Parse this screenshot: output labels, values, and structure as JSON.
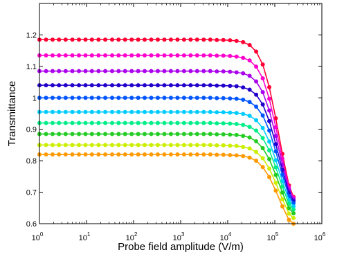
{
  "chart_data": {
    "type": "line",
    "title": "",
    "xlabel": "Probe field amplitude (V/m)",
    "ylabel": "Transmittance",
    "x_scale": "log",
    "xlim": [
      1,
      1000000
    ],
    "ylim": [
      0.6,
      1.3
    ],
    "grid": false,
    "x_ticks": [
      {
        "value": 1,
        "base": "10",
        "exp": "0"
      },
      {
        "value": 10,
        "base": "10",
        "exp": "1"
      },
      {
        "value": 100,
        "base": "10",
        "exp": "2"
      },
      {
        "value": 1000,
        "base": "10",
        "exp": "3"
      },
      {
        "value": 10000,
        "base": "10",
        "exp": "4"
      },
      {
        "value": 100000,
        "base": "10",
        "exp": "5"
      },
      {
        "value": 1000000,
        "base": "10",
        "exp": "6"
      }
    ],
    "y_ticks": [
      {
        "value": 0.6,
        "label": "0.6"
      },
      {
        "value": 0.7,
        "label": "0.7"
      },
      {
        "value": 0.8,
        "label": "0.8"
      },
      {
        "value": 0.9,
        "label": "0.9"
      },
      {
        "value": 1.0,
        "label": "1"
      },
      {
        "value": 1.1,
        "label": "1.1"
      },
      {
        "value": 1.2,
        "label": "1.2"
      }
    ],
    "x": [
      1,
      1.38,
      1.9,
      2.6,
      3.6,
      5,
      6.9,
      9.5,
      13,
      18,
      25,
      35,
      48,
      66,
      91,
      125,
      172,
      237,
      327,
      451,
      621,
      856,
      1180,
      1630,
      2240,
      3090,
      4260,
      5870,
      8090,
      11200,
      15400,
      21200,
      29200,
      40200,
      55500,
      76400,
      105000,
      145000,
      200000,
      250000
    ],
    "series": [
      {
        "color": "#ff0033",
        "low": 0.185,
        "values": [
          1.185,
          1.185,
          1.185,
          1.185,
          1.185,
          1.185,
          1.185,
          1.185,
          1.185,
          1.185,
          1.185,
          1.185,
          1.185,
          1.185,
          1.185,
          1.185,
          1.185,
          1.185,
          1.185,
          1.185,
          1.185,
          1.185,
          1.185,
          1.185,
          1.185,
          1.185,
          1.185,
          1.184,
          1.184,
          1.183,
          1.181,
          1.177,
          1.168,
          1.147,
          1.106,
          1.034,
          0.935,
          0.822,
          0.722,
          0.685
        ]
      },
      {
        "color": "#ff00cc",
        "low": 0.19,
        "values": [
          1.135,
          1.135,
          1.135,
          1.135,
          1.135,
          1.135,
          1.135,
          1.135,
          1.135,
          1.135,
          1.135,
          1.135,
          1.135,
          1.135,
          1.135,
          1.135,
          1.135,
          1.135,
          1.135,
          1.135,
          1.135,
          1.135,
          1.135,
          1.135,
          1.135,
          1.135,
          1.135,
          1.134,
          1.134,
          1.133,
          1.131,
          1.127,
          1.119,
          1.099,
          1.062,
          0.997,
          0.907,
          0.806,
          0.715,
          0.682
        ]
      },
      {
        "color": "#aa00ee",
        "low": 0.195,
        "values": [
          1.085,
          1.085,
          1.085,
          1.085,
          1.085,
          1.085,
          1.085,
          1.085,
          1.085,
          1.085,
          1.085,
          1.085,
          1.085,
          1.085,
          1.085,
          1.085,
          1.085,
          1.085,
          1.085,
          1.085,
          1.085,
          1.085,
          1.085,
          1.085,
          1.085,
          1.085,
          1.085,
          1.084,
          1.084,
          1.083,
          1.081,
          1.078,
          1.07,
          1.052,
          1.018,
          0.96,
          0.879,
          0.788,
          0.707,
          0.678
        ]
      },
      {
        "color": "#2200cc",
        "low": 0.2,
        "values": [
          1.04,
          1.04,
          1.04,
          1.04,
          1.04,
          1.04,
          1.04,
          1.04,
          1.04,
          1.04,
          1.04,
          1.04,
          1.04,
          1.04,
          1.04,
          1.04,
          1.04,
          1.04,
          1.04,
          1.04,
          1.04,
          1.04,
          1.04,
          1.04,
          1.04,
          1.04,
          1.04,
          1.039,
          1.039,
          1.038,
          1.037,
          1.033,
          1.026,
          1.01,
          0.979,
          0.926,
          0.853,
          0.771,
          0.697,
          0.672
        ]
      },
      {
        "color": "#0055ff",
        "low": 0.205,
        "values": [
          1.0,
          1.0,
          1.0,
          1.0,
          1.0,
          1.0,
          1.0,
          1.0,
          1.0,
          1.0,
          1.0,
          1.0,
          1.0,
          1.0,
          1.0,
          1.0,
          1.0,
          1.0,
          1.0,
          1.0,
          1.0,
          1.0,
          1.0,
          1.0,
          1.0,
          1.0,
          1.0,
          0.999,
          0.999,
          0.998,
          0.997,
          0.994,
          0.987,
          0.972,
          0.944,
          0.896,
          0.83,
          0.755,
          0.688,
          0.665
        ]
      },
      {
        "color": "#00ccff",
        "low": 0.21,
        "values": [
          0.955,
          0.955,
          0.955,
          0.955,
          0.955,
          0.955,
          0.955,
          0.955,
          0.955,
          0.955,
          0.955,
          0.955,
          0.955,
          0.955,
          0.955,
          0.955,
          0.955,
          0.955,
          0.955,
          0.955,
          0.955,
          0.955,
          0.955,
          0.955,
          0.955,
          0.955,
          0.955,
          0.954,
          0.954,
          0.953,
          0.952,
          0.949,
          0.943,
          0.929,
          0.904,
          0.861,
          0.802,
          0.735,
          0.675,
          0.655
        ]
      },
      {
        "color": "#00ee88",
        "low": 0.215,
        "values": [
          0.92,
          0.92,
          0.92,
          0.92,
          0.92,
          0.92,
          0.92,
          0.92,
          0.92,
          0.92,
          0.92,
          0.92,
          0.92,
          0.92,
          0.92,
          0.92,
          0.92,
          0.92,
          0.92,
          0.92,
          0.92,
          0.92,
          0.92,
          0.92,
          0.92,
          0.92,
          0.92,
          0.919,
          0.919,
          0.918,
          0.917,
          0.914,
          0.908,
          0.896,
          0.872,
          0.833,
          0.779,
          0.718,
          0.663,
          0.645
        ]
      },
      {
        "color": "#22cc22",
        "low": 0.22,
        "values": [
          0.885,
          0.885,
          0.885,
          0.885,
          0.885,
          0.885,
          0.885,
          0.885,
          0.885,
          0.885,
          0.885,
          0.885,
          0.885,
          0.885,
          0.885,
          0.885,
          0.885,
          0.885,
          0.885,
          0.885,
          0.885,
          0.885,
          0.885,
          0.885,
          0.885,
          0.885,
          0.885,
          0.884,
          0.884,
          0.883,
          0.882,
          0.879,
          0.874,
          0.862,
          0.84,
          0.805,
          0.755,
          0.699,
          0.649,
          0.633
        ]
      },
      {
        "color": "#ccee00",
        "low": 0.225,
        "values": [
          0.85,
          0.85,
          0.85,
          0.85,
          0.85,
          0.85,
          0.85,
          0.85,
          0.85,
          0.85,
          0.85,
          0.85,
          0.85,
          0.85,
          0.85,
          0.85,
          0.85,
          0.85,
          0.85,
          0.85,
          0.85,
          0.85,
          0.85,
          0.85,
          0.85,
          0.85,
          0.85,
          0.849,
          0.849,
          0.848,
          0.847,
          0.844,
          0.839,
          0.828,
          0.808,
          0.775,
          0.73,
          0.678,
          0.632,
          0.618
        ]
      },
      {
        "color": "#ff9900",
        "low": 0.23,
        "values": [
          0.82,
          0.82,
          0.82,
          0.82,
          0.82,
          0.82,
          0.82,
          0.82,
          0.82,
          0.82,
          0.82,
          0.82,
          0.82,
          0.82,
          0.82,
          0.82,
          0.82,
          0.82,
          0.82,
          0.82,
          0.82,
          0.82,
          0.82,
          0.82,
          0.82,
          0.82,
          0.82,
          0.819,
          0.819,
          0.818,
          0.817,
          0.815,
          0.81,
          0.8,
          0.78,
          0.748,
          0.705,
          0.655,
          0.612,
          0.6
        ]
      }
    ]
  }
}
